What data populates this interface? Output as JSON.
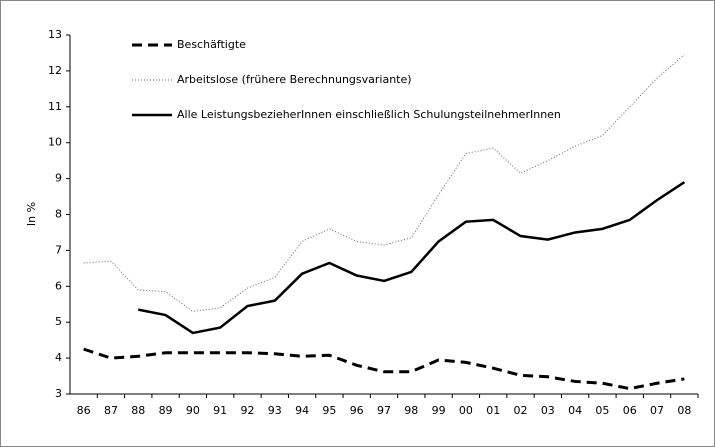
{
  "chart_data": {
    "type": "line",
    "y_label": "In %",
    "categories": [
      "86",
      "87",
      "88",
      "89",
      "90",
      "91",
      "92",
      "93",
      "94",
      "95",
      "96",
      "97",
      "98",
      "99",
      "00",
      "01",
      "02",
      "03",
      "04",
      "05",
      "06",
      "07",
      "08"
    ],
    "series": [
      {
        "name": "Beschäftigte",
        "color": "#000000",
        "dash": "dashed",
        "values": [
          4.25,
          4.0,
          4.05,
          4.15,
          4.15,
          4.15,
          4.15,
          4.12,
          4.05,
          4.08,
          3.8,
          3.62,
          3.62,
          3.95,
          3.88,
          3.72,
          3.52,
          3.48,
          3.35,
          3.3,
          3.15,
          3.3,
          3.42
        ]
      },
      {
        "name": "Arbeitslose (frühere Berechnungsvariante)",
        "color": "#666666",
        "dash": "dotted",
        "values": [
          6.65,
          6.7,
          5.9,
          5.85,
          5.3,
          5.4,
          5.95,
          6.25,
          7.25,
          7.6,
          7.25,
          7.15,
          7.35,
          8.55,
          9.7,
          9.85,
          9.15,
          9.5,
          9.9,
          10.2,
          11.0,
          11.8,
          12.45
        ]
      },
      {
        "name": "Alle LeistungsbezieherInnen einschließlich SchulungsteilnehmerInnen",
        "color": "#000000",
        "dash": "solid",
        "values": [
          null,
          null,
          5.35,
          5.2,
          4.7,
          4.85,
          5.45,
          5.6,
          6.35,
          6.65,
          6.3,
          6.15,
          6.4,
          7.25,
          7.8,
          7.85,
          7.4,
          7.3,
          7.5,
          7.6,
          7.85,
          8.4,
          8.9
        ]
      }
    ],
    "ylim": [
      3,
      13
    ],
    "yticks": [
      3,
      4,
      5,
      6,
      7,
      8,
      9,
      10,
      11,
      12,
      13
    ],
    "grid": false,
    "legend": "top-left"
  }
}
